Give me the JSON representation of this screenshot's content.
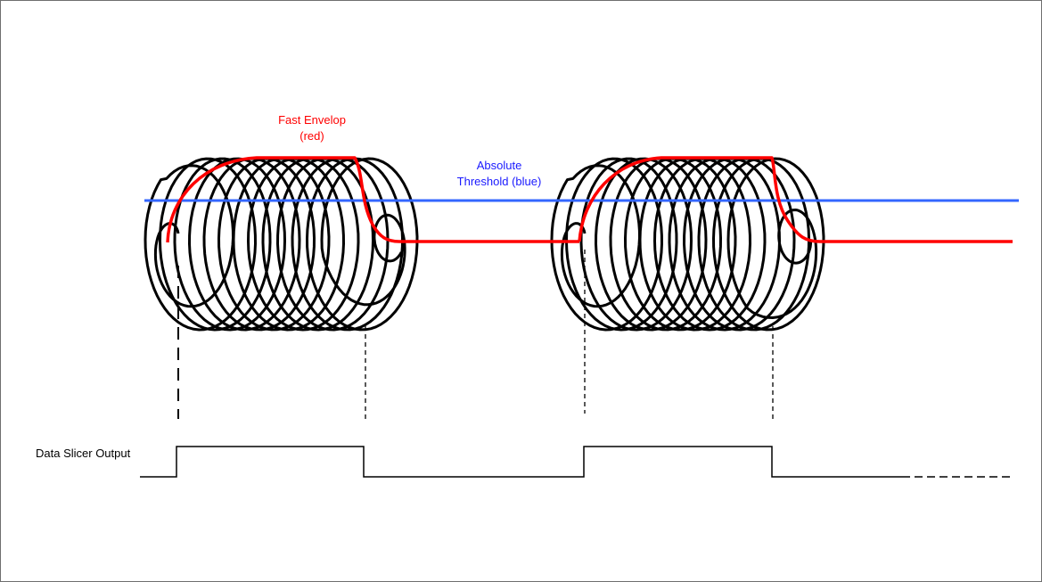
{
  "labels": {
    "envelope_line1": "Fast Envelop",
    "envelope_line2": "(red)",
    "threshold_line1": "Absolute",
    "threshold_line2": "Threshold (blue)",
    "slicer_output": "Data Slicer Output"
  },
  "colors": {
    "envelope": "#ff0000",
    "threshold": "#3366ff",
    "signal": "#000000",
    "threshold_label": "#1a1aff",
    "envelope_label": "#ff0000"
  }
}
